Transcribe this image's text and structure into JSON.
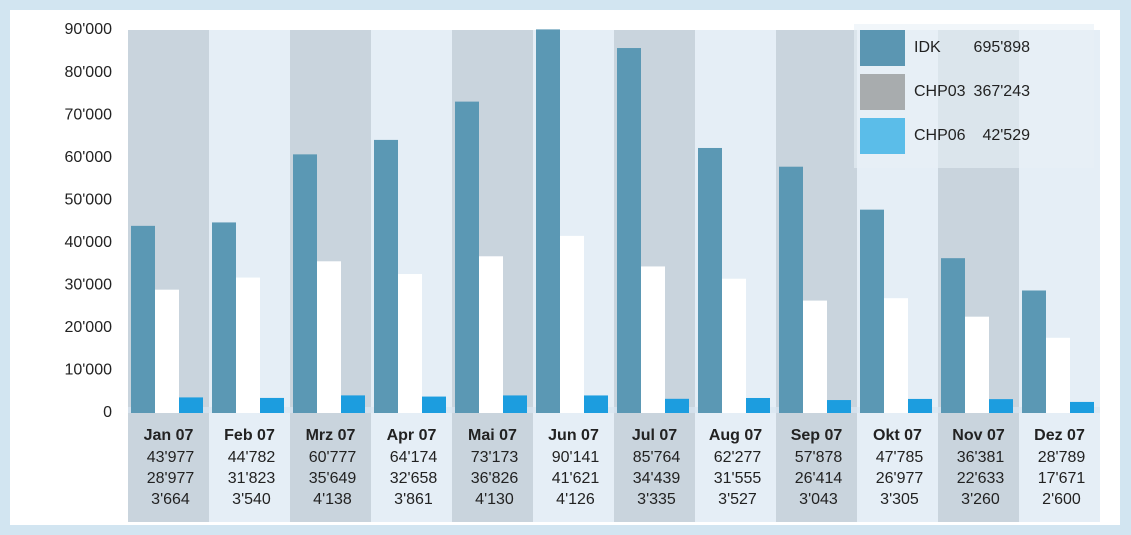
{
  "chart_data": {
    "type": "bar",
    "categories": [
      "Jan 07",
      "Feb 07",
      "Mrz 07",
      "Apr 07",
      "Mai 07",
      "Jun 07",
      "Jul 07",
      "Aug 07",
      "Sep 07",
      "Okt 07",
      "Nov 07",
      "Dez 07"
    ],
    "series": [
      {
        "name": "IDK",
        "color": "#5b98b4",
        "legend_color": "#5b96b2",
        "total": "695'898",
        "values": [
          43977,
          44782,
          60777,
          64174,
          73173,
          90141,
          85764,
          62277,
          57878,
          47785,
          36381,
          28789
        ],
        "value_labels": [
          "43'977",
          "44'782",
          "60'777",
          "64'174",
          "73'173",
          "90'141",
          "85'764",
          "62'277",
          "57'878",
          "47'785",
          "36'381",
          "28'789"
        ]
      },
      {
        "name": "CHP03",
        "color": "#ffffff",
        "legend_color": "#a8acae",
        "total": "367'243",
        "values": [
          28977,
          31823,
          35649,
          32658,
          36826,
          41621,
          34439,
          31555,
          26414,
          26977,
          22633,
          17671
        ],
        "value_labels": [
          "28'977",
          "31'823",
          "35'649",
          "32'658",
          "36'826",
          "41'621",
          "34'439",
          "31'555",
          "26'414",
          "26'977",
          "22'633",
          "17'671"
        ]
      },
      {
        "name": "CHP06",
        "color": "#1c9ddf",
        "legend_color": "#5bbde9",
        "total": "42'529",
        "values": [
          3664,
          3540,
          4138,
          3861,
          4130,
          4126,
          3335,
          3527,
          3043,
          3305,
          3260,
          2600
        ],
        "value_labels": [
          "3'664",
          "3'540",
          "4'138",
          "3'861",
          "4'130",
          "4'126",
          "3'335",
          "3'527",
          "3'043",
          "3'305",
          "3'260",
          "2'600"
        ]
      }
    ],
    "ylim": [
      0,
      90000
    ],
    "yticks": [
      0,
      {
        "value": 10000,
        "label": "10'000"
      },
      {
        "value": 20000,
        "label": "20'000"
      },
      {
        "value": 30000,
        "label": "30'000"
      },
      {
        "value": 40000,
        "label": "40'000"
      },
      {
        "value": 50000,
        "label": "50'000"
      },
      {
        "value": 60000,
        "label": "60'000"
      },
      {
        "value": 70000,
        "label": "70'000"
      },
      {
        "value": 80000,
        "label": "80'000"
      },
      {
        "value": 90000,
        "label": "90'000"
      }
    ],
    "legend": "top-right"
  }
}
